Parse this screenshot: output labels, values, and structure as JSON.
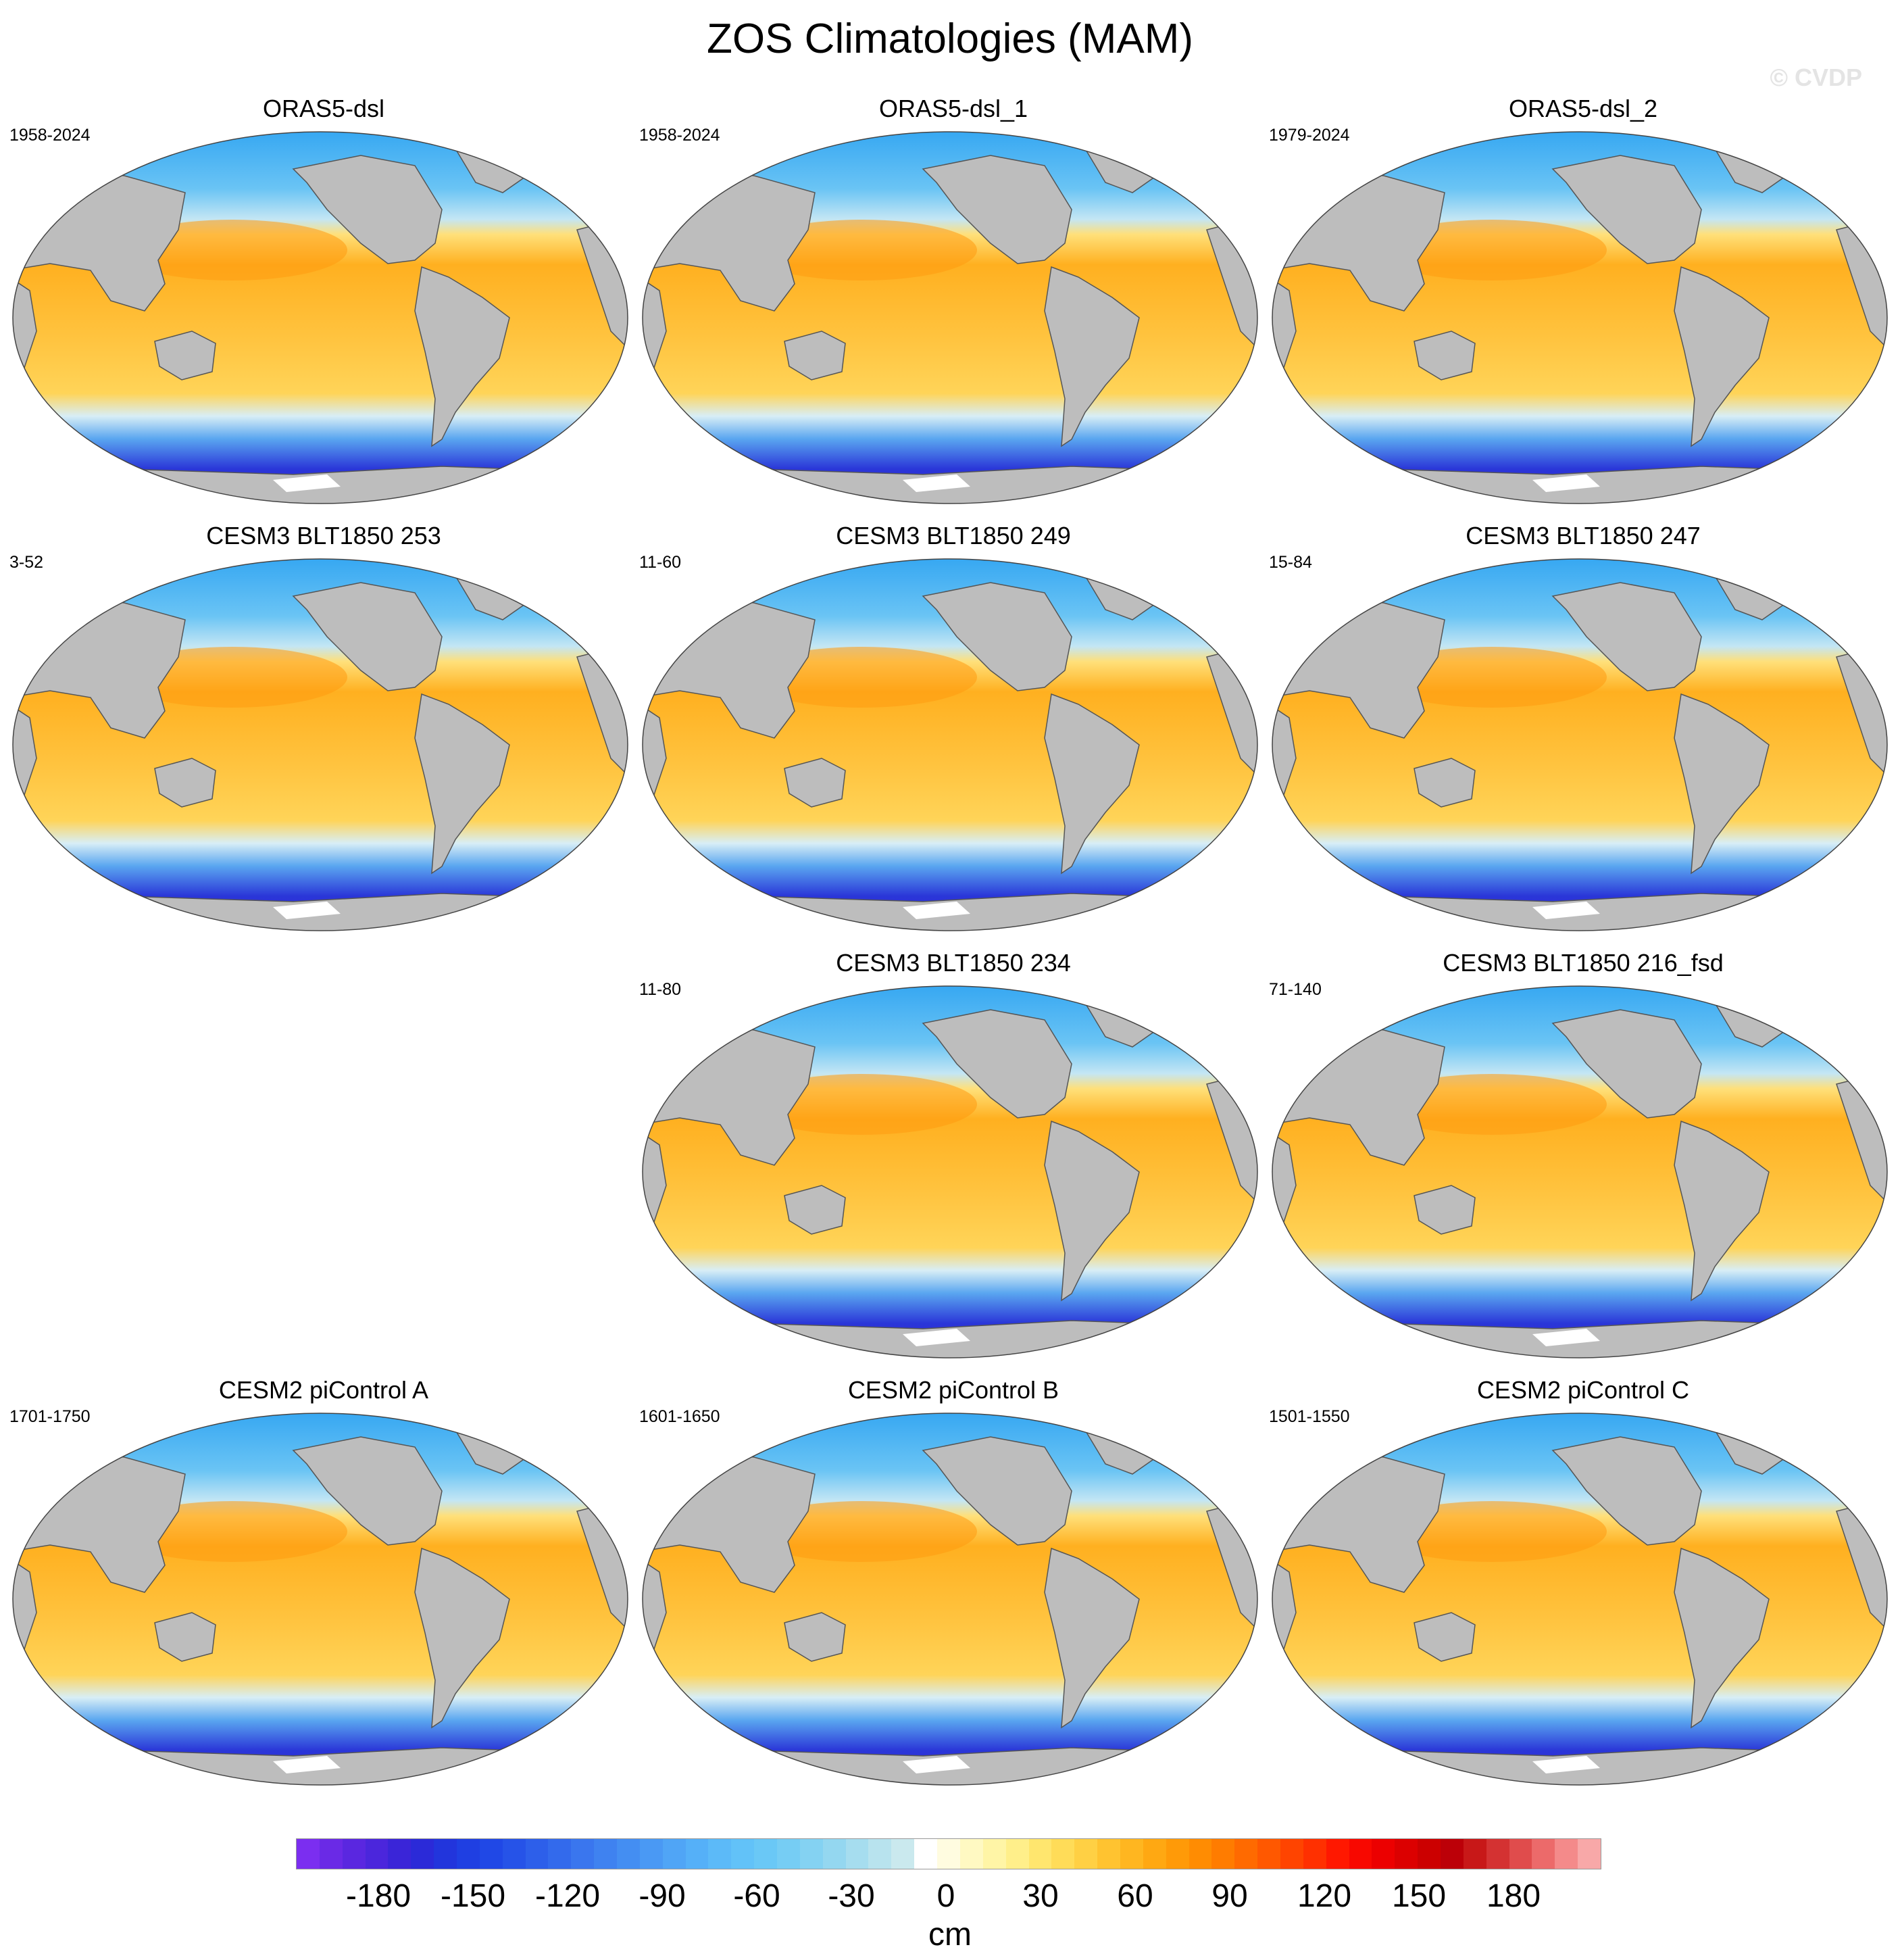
{
  "title": "ZOS Climatologies (MAM)",
  "watermark": "© CVDP",
  "colors": {
    "land": "#bdbdbd",
    "coast": "#555555",
    "ice": "#ffffff"
  },
  "panels": [
    {
      "title": "ORAS5-dsl",
      "years": "1958-2024"
    },
    {
      "title": "ORAS5-dsl_1",
      "years": "1958-2024"
    },
    {
      "title": "ORAS5-dsl_2",
      "years": "1979-2024"
    },
    {
      "title": "CESM3 BLT1850 253",
      "years": "3-52"
    },
    {
      "title": "CESM3 BLT1850 249",
      "years": "11-60"
    },
    {
      "title": "CESM3 BLT1850 247",
      "years": "15-84"
    },
    {
      "title": "CESM3 BLT1850 234",
      "years": "11-80"
    },
    {
      "title": "CESM3 BLT1850 216_fsd",
      "years": "71-140"
    },
    {
      "title": "CESM2 piControl A",
      "years": "1701-1750"
    },
    {
      "title": "CESM2 piControl B",
      "years": "1601-1650"
    },
    {
      "title": "CESM2 piControl C",
      "years": "1501-1550"
    }
  ],
  "colorbar": {
    "units": "cm",
    "tick_labels": [
      "-180",
      "-150",
      "-120",
      "-90",
      "-60",
      "-30",
      "0",
      "30",
      "60",
      "90",
      "120",
      "150",
      "180"
    ],
    "colors": [
      "#7b2ef0",
      "#6a2ae6",
      "#5a27e0",
      "#4b26dc",
      "#3a25d8",
      "#2b2ad8",
      "#2235dc",
      "#1f3fe2",
      "#2048e6",
      "#2653e8",
      "#2d5fea",
      "#336aec",
      "#3a76ee",
      "#3f82f0",
      "#448ef2",
      "#4a99f4",
      "#50a5f6",
      "#55b0f8",
      "#5cbaf8",
      "#62c2f8",
      "#6ac8f6",
      "#76cdf4",
      "#84d2f2",
      "#94d7f0",
      "#a6ddef",
      "#b8e3ee",
      "#cae9ee",
      "#ffffff",
      "#fffce0",
      "#fff9c2",
      "#fff5a6",
      "#ffef8a",
      "#ffe66e",
      "#ffdc58",
      "#ffd044",
      "#ffc330",
      "#ffb620",
      "#ffa812",
      "#ff9a08",
      "#ff8c02",
      "#ff7c00",
      "#ff6a00",
      "#ff5800",
      "#ff4400",
      "#ff3000",
      "#ff1800",
      "#f80800",
      "#ec0000",
      "#dc0000",
      "#cc0000",
      "#bc0008",
      "#c81818",
      "#d43232",
      "#e04c4c",
      "#ec6a6a",
      "#f48a8a",
      "#f8a8a8"
    ]
  }
}
